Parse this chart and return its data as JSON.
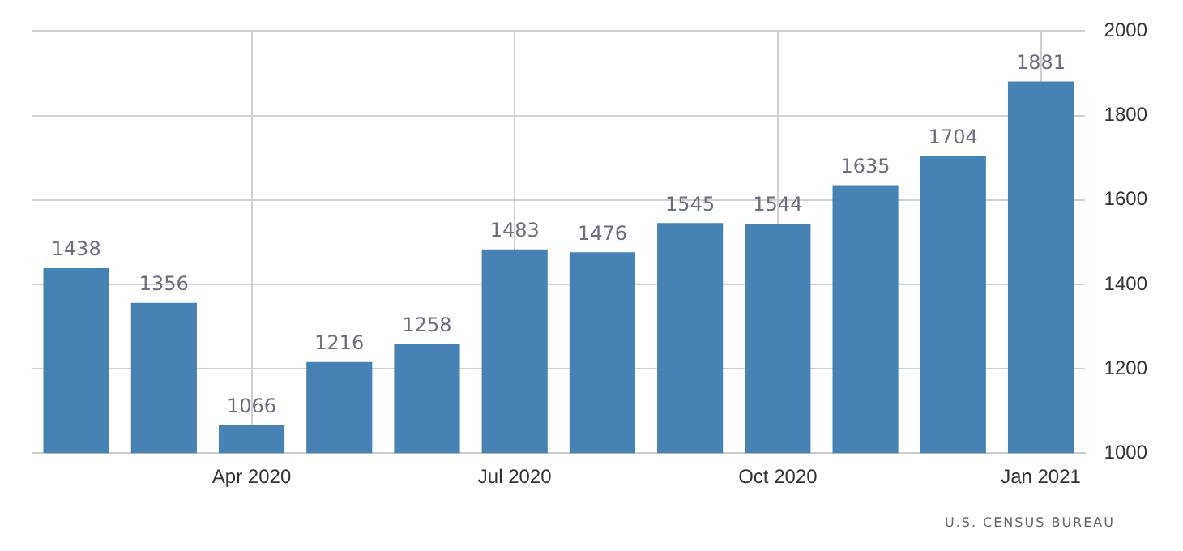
{
  "chart_data": {
    "type": "bar",
    "categories": [
      null,
      null,
      "Apr 2020",
      null,
      null,
      "Jul 2020",
      null,
      null,
      "Oct 2020",
      null,
      null,
      "Jan 2021"
    ],
    "values": [
      1438,
      1356,
      1066,
      1216,
      1258,
      1483,
      1476,
      1545,
      1544,
      1635,
      1704,
      1881
    ],
    "color": "#4682b4",
    "ylim": [
      1000,
      2000
    ],
    "yticks": [
      1000,
      1200,
      1400,
      1600,
      1800,
      2000
    ],
    "grid": true,
    "data_labels": true,
    "annotations": [
      "U.S. CENSUS BUREAU"
    ]
  }
}
